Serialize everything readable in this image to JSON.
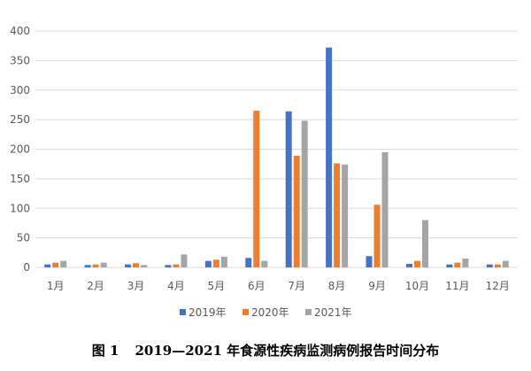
{
  "caption": {
    "figure_number": "图 1",
    "text": "2019—2021 年食源性疾病监测病例报告时间分布"
  },
  "colors": {
    "2019年": "#4472C4",
    "2020年": "#ED7D31",
    "2021年": "#A5A5A5",
    "grid": "#D9D9D9",
    "axis_text": "#595959"
  },
  "chart_data": {
    "type": "bar",
    "title": "",
    "xlabel": "",
    "ylabel": "",
    "ylim": [
      0,
      400
    ],
    "yticks": [
      0,
      50,
      100,
      150,
      200,
      250,
      300,
      350,
      400
    ],
    "grid": true,
    "legend_position": "bottom",
    "categories": [
      "1月",
      "2月",
      "3月",
      "4月",
      "5月",
      "6月",
      "7月",
      "8月",
      "9月",
      "10月",
      "11月",
      "12月"
    ],
    "series": [
      {
        "name": "2019年",
        "values": [
          5,
          4,
          5,
          4,
          11,
          16,
          264,
          372,
          19,
          6,
          5,
          5
        ]
      },
      {
        "name": "2020年",
        "values": [
          8,
          5,
          7,
          5,
          13,
          265,
          189,
          176,
          106,
          11,
          8,
          5
        ]
      },
      {
        "name": "2021年",
        "values": [
          11,
          8,
          4,
          22,
          18,
          11,
          248,
          174,
          195,
          80,
          15,
          11
        ]
      }
    ]
  }
}
